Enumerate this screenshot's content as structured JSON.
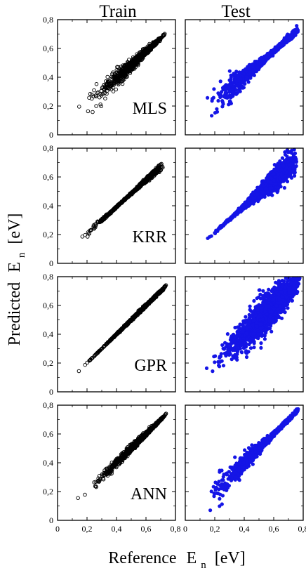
{
  "figure": {
    "column_titles": [
      "Train",
      "Test"
    ],
    "ylabel": {
      "text": "Predicted",
      "symbol": "E",
      "subscript": "n",
      "unit": "[eV]"
    },
    "xlabel": {
      "text": "Reference",
      "symbol": "E",
      "subscript": "n",
      "unit": "[eV]"
    },
    "colors": {
      "train": "#000000",
      "test": "#1515e6",
      "axis": "#000000"
    }
  },
  "chart_data": [
    {
      "type": "scatter",
      "row": "MLS",
      "column": "Train",
      "label": "MLS",
      "marker": "open-circle",
      "color": "#000000",
      "xlim": [
        0,
        0.8
      ],
      "ylim": [
        0,
        0.8
      ],
      "x_ticks": [
        0,
        0.2,
        0.4,
        0.6,
        0.8
      ],
      "y_ticks": [
        0,
        0.2,
        0.4,
        0.6,
        0.8
      ],
      "y_tick_labels": [
        "0",
        "0,2",
        "0,4",
        "0,6",
        "0,8"
      ],
      "x_range": [
        0.08,
        0.73
      ],
      "slope": 0.93,
      "intercept": 0.02,
      "spread": 0.03
    },
    {
      "type": "scatter",
      "row": "MLS",
      "column": "Test",
      "marker": "filled-circle",
      "color": "#1515e6",
      "xlim": [
        0,
        0.8
      ],
      "ylim": [
        0,
        0.8
      ],
      "x_ticks": [
        0,
        0.2,
        0.4,
        0.6,
        0.8
      ],
      "y_ticks": [
        0,
        0.2,
        0.4,
        0.6,
        0.8
      ],
      "x_range": [
        0.05,
        0.77
      ],
      "slope": 0.9,
      "intercept": 0.04,
      "spread": 0.06
    },
    {
      "type": "scatter",
      "row": "KRR",
      "column": "Train",
      "label": "KRR",
      "marker": "open-circle",
      "color": "#000000",
      "xlim": [
        0,
        0.8
      ],
      "ylim": [
        0,
        0.8
      ],
      "x_ticks": [
        0,
        0.2,
        0.4,
        0.6,
        0.8
      ],
      "y_ticks": [
        0,
        0.2,
        0.4,
        0.6,
        0.8
      ],
      "y_tick_labels": [
        "0",
        "0,2",
        "0,4",
        "0,6",
        "0,8"
      ],
      "x_range": [
        0.08,
        0.72
      ],
      "slope": 0.93,
      "intercept": 0.02,
      "spread": 0.025
    },
    {
      "type": "scatter",
      "row": "KRR",
      "column": "Test",
      "marker": "filled-circle",
      "color": "#1515e6",
      "xlim": [
        0,
        0.8
      ],
      "ylim": [
        0,
        0.8
      ],
      "x_ticks": [
        0,
        0.2,
        0.4,
        0.6,
        0.8
      ],
      "y_ticks": [
        0,
        0.2,
        0.4,
        0.6,
        0.8
      ],
      "x_range": [
        0.05,
        0.76
      ],
      "slope": 0.92,
      "intercept": 0.03,
      "spread": 0.045
    },
    {
      "type": "scatter",
      "row": "GPR",
      "column": "Train",
      "label": "GPR",
      "marker": "open-circle",
      "color": "#000000",
      "xlim": [
        0,
        0.8
      ],
      "ylim": [
        0,
        0.8
      ],
      "x_ticks": [
        0,
        0.2,
        0.4,
        0.6,
        0.8
      ],
      "y_ticks": [
        0,
        0.2,
        0.4,
        0.6,
        0.8
      ],
      "y_tick_labels": [
        "0",
        "0,2",
        "0,4",
        "0,6",
        "0,8"
      ],
      "x_range": [
        0.08,
        0.74
      ],
      "slope": 1.0,
      "intercept": 0.0,
      "spread": 0.004
    },
    {
      "type": "scatter",
      "row": "GPR",
      "column": "Test",
      "marker": "filled-circle",
      "color": "#1515e6",
      "xlim": [
        0,
        0.8
      ],
      "ylim": [
        0,
        0.8
      ],
      "x_ticks": [
        0,
        0.2,
        0.4,
        0.6,
        0.8
      ],
      "y_ticks": [
        0,
        0.2,
        0.4,
        0.6,
        0.8
      ],
      "x_range": [
        0.05,
        0.78
      ],
      "slope": 1.0,
      "intercept": 0.0,
      "spread": 0.06
    },
    {
      "type": "scatter",
      "row": "ANN",
      "column": "Train",
      "label": "ANN",
      "marker": "open-circle",
      "color": "#000000",
      "xlim": [
        0,
        0.8
      ],
      "ylim": [
        0,
        0.8
      ],
      "x_ticks": [
        0,
        0.2,
        0.4,
        0.6,
        0.8
      ],
      "y_ticks": [
        0,
        0.2,
        0.4,
        0.6,
        0.8
      ],
      "y_tick_labels": [
        "0",
        "0,2",
        "0,4",
        "0,6",
        "0,8"
      ],
      "x_tick_labels": [
        "0",
        "0,2",
        "0,4",
        "0,6",
        "0,8"
      ],
      "x_range": [
        0.08,
        0.74
      ],
      "slope": 1.0,
      "intercept": 0.0,
      "spread": 0.015
    },
    {
      "type": "scatter",
      "row": "ANN",
      "column": "Test",
      "marker": "filled-circle",
      "color": "#1515e6",
      "xlim": [
        0,
        0.8
      ],
      "ylim": [
        0,
        0.8
      ],
      "x_ticks": [
        0,
        0.2,
        0.4,
        0.6,
        0.8
      ],
      "y_ticks": [
        0,
        0.2,
        0.4,
        0.6,
        0.8
      ],
      "x_tick_labels": [
        "0",
        "0,2",
        "0,4",
        "0,6",
        "0,8"
      ],
      "x_range": [
        0.05,
        0.78
      ],
      "slope": 1.0,
      "intercept": 0.0,
      "spread": 0.05
    }
  ]
}
